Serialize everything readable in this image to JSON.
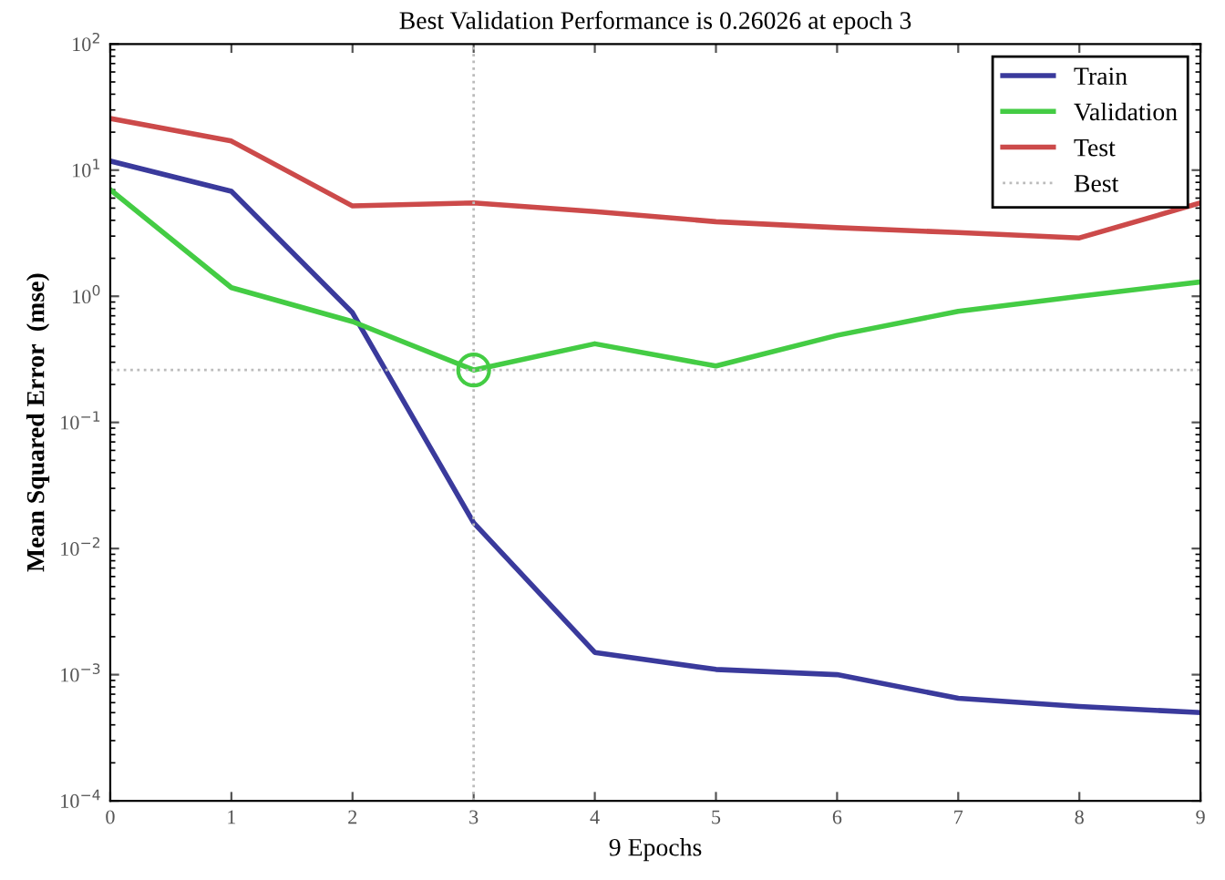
{
  "chart_data": {
    "type": "line",
    "title": "Best Validation Performance is 0.26026 at epoch 3",
    "xlabel": "9 Epochs",
    "ylabel": "Mean Squared Error  (mse)",
    "x": [
      0,
      1,
      2,
      3,
      4,
      5,
      6,
      7,
      8,
      9
    ],
    "series": [
      {
        "name": "Train",
        "color": "#3a3a9c",
        "values": [
          11.8,
          6.8,
          0.74,
          0.016,
          0.0015,
          0.0011,
          0.001,
          0.00065,
          0.00056,
          0.0005
        ]
      },
      {
        "name": "Validation",
        "color": "#44cc44",
        "values": [
          7,
          1.17,
          0.63,
          0.26026,
          0.42,
          0.28,
          0.49,
          0.76,
          1.0,
          1.3
        ]
      },
      {
        "name": "Test",
        "color": "#cc4a4a",
        "values": [
          25.7,
          17,
          5.2,
          5.5,
          4.7,
          3.9,
          3.5,
          3.2,
          2.9,
          5.5
        ]
      },
      {
        "type": "scatter",
        "color": "#44cc44",
        "marker": "circle",
        "x": [
          3
        ],
        "values": [
          0.26026
        ]
      }
    ],
    "ref_lines": [
      {
        "axis": "y",
        "value": 0.26026,
        "label": "Best",
        "color": "#bbbbbb",
        "line_style": "dotted"
      },
      {
        "axis": "x",
        "value": 3,
        "color": "#bbbbbb",
        "line_style": "dotted"
      }
    ],
    "log": "y",
    "xlim": [
      0,
      9
    ],
    "xticks": [
      0,
      1,
      2,
      3,
      4,
      5,
      6,
      7,
      8,
      9
    ],
    "ylim": [
      0.0001,
      100
    ],
    "yticks": [
      {
        "value": 0.0001,
        "label": "10$^{−4}$"
      },
      {
        "value": 0.001,
        "label": "10$^{−3}$"
      },
      {
        "value": 0.01,
        "label": "10$^{−2}$"
      },
      {
        "value": 0.1,
        "label": "10$^{−1}$"
      },
      {
        "value": 1,
        "label": "10$^{0}$"
      },
      {
        "value": 10,
        "label": "10$^{1}$"
      },
      {
        "value": 100,
        "label": "10$^{2}$"
      }
    ],
    "legend": "top right",
    "grid": false
  }
}
